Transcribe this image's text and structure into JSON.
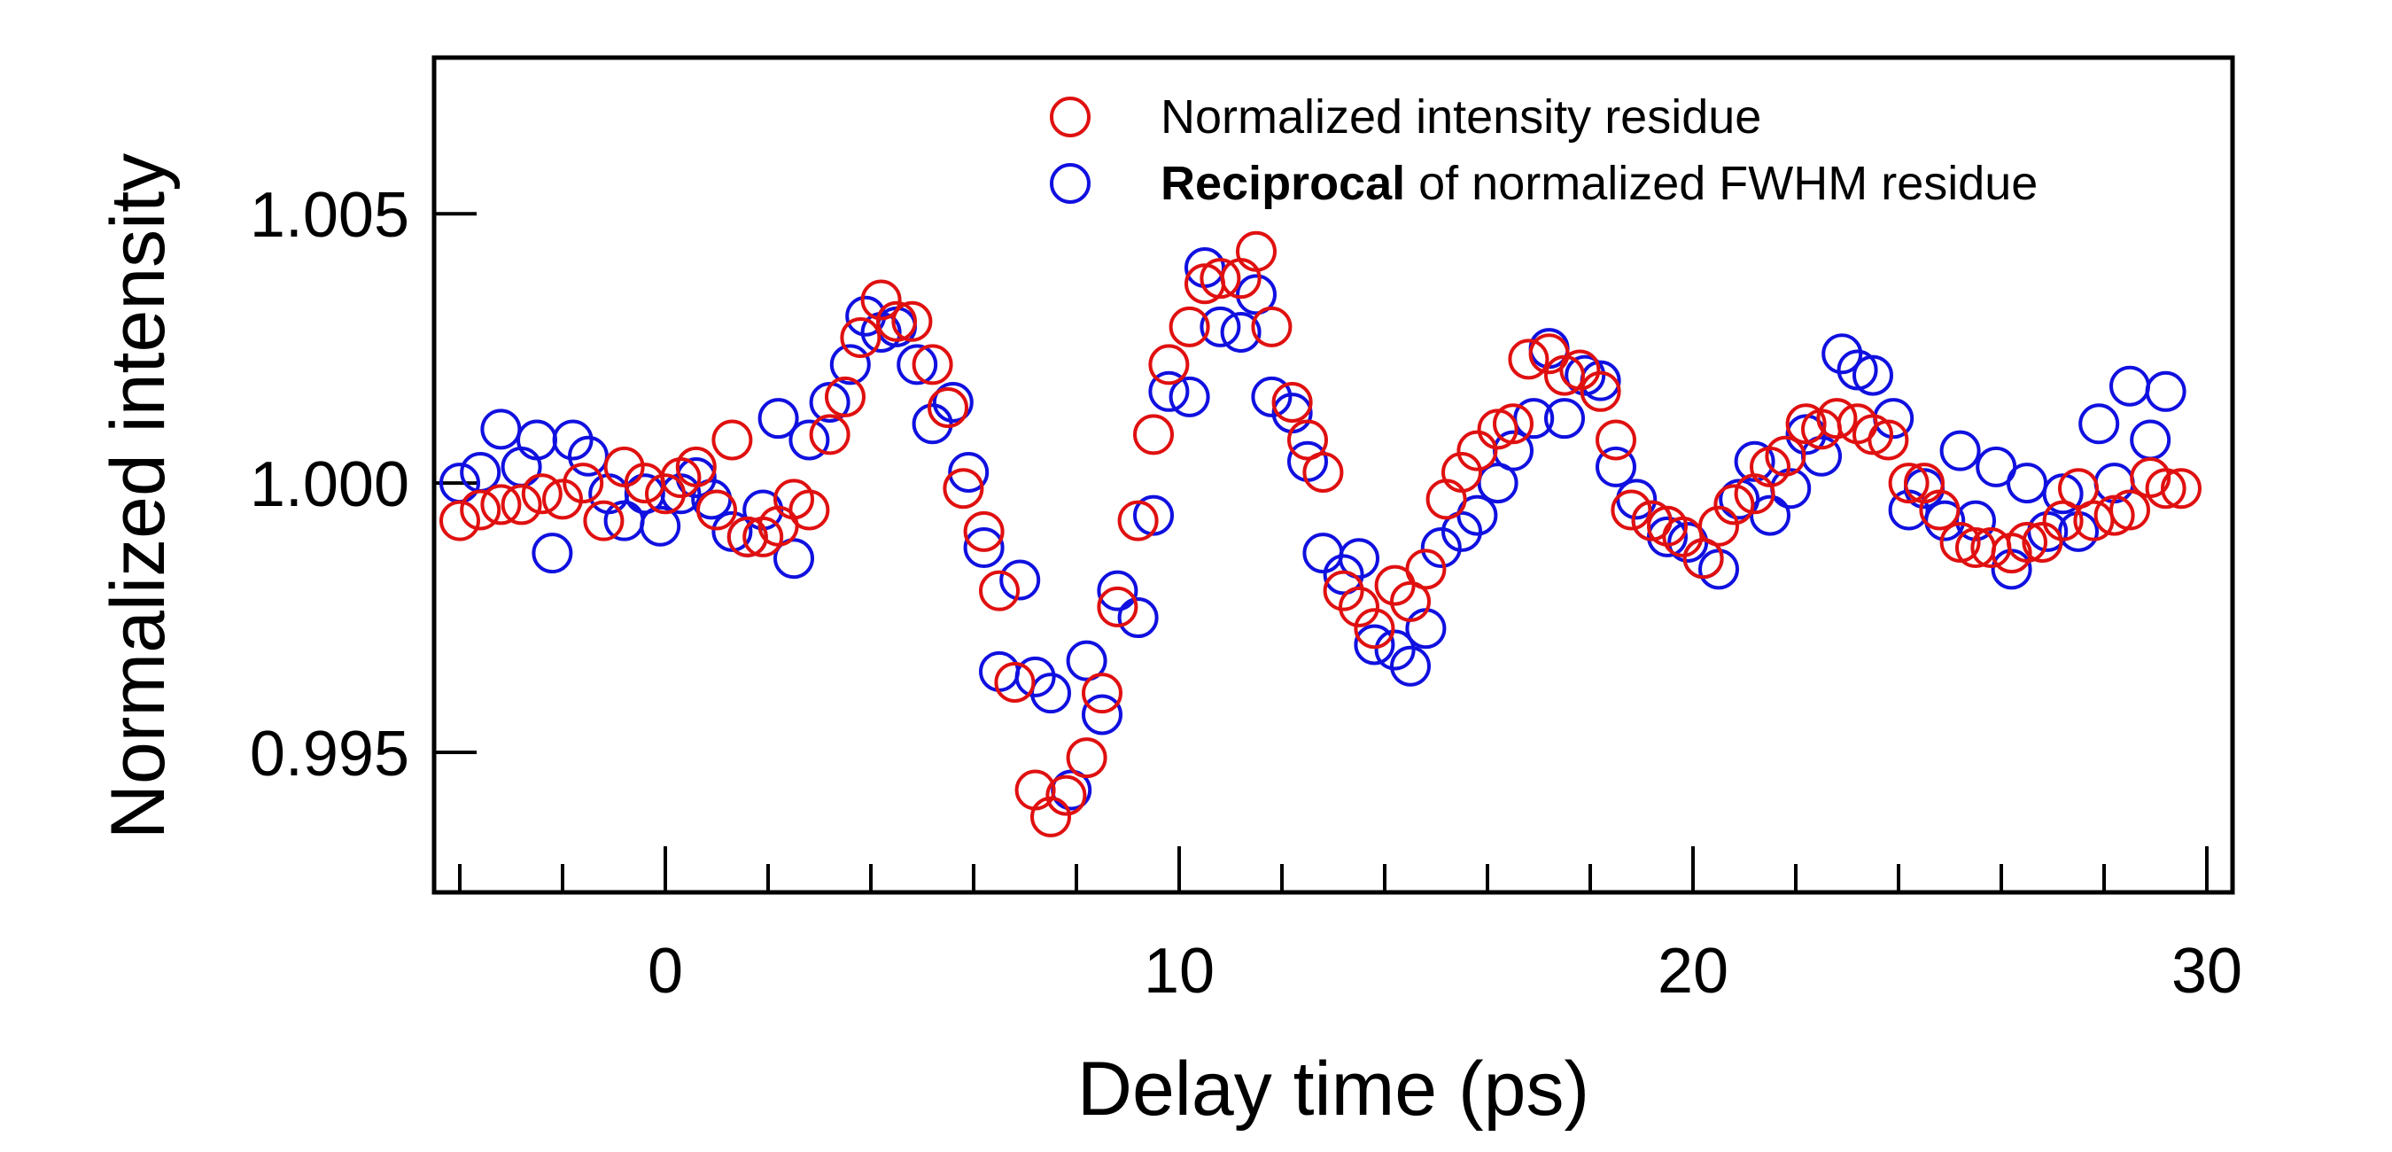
{
  "chart_data": {
    "type": "scatter",
    "title": "",
    "xlabel": "Delay time (ps)",
    "ylabel": "Normalized intensity",
    "xlim": [
      -4.5,
      30.5
    ],
    "ylim": [
      0.9924,
      1.0079
    ],
    "x_ticks": [
      0,
      10,
      20,
      30
    ],
    "x_tick_labels": [
      "0",
      "10",
      "20",
      "30"
    ],
    "x_minor_step": 2,
    "y_ticks": [
      0.995,
      1.0,
      1.005
    ],
    "y_tick_labels": [
      "0.995",
      "1.000",
      "1.005"
    ],
    "grid": false,
    "legend_position": "top-right",
    "series": [
      {
        "name": "Reciprocal of normalized FWHM residue",
        "legend_bold_part": "Reciprocal",
        "legend_rest": " of normalized FWHM residue",
        "color": "#1010e0",
        "marker": "open-circle",
        "points": [
          [
            -4.0,
            1.0
          ],
          [
            -3.6,
            1.0002
          ],
          [
            -3.2,
            1.001
          ],
          [
            -2.8,
            1.0003
          ],
          [
            -2.5,
            1.0008
          ],
          [
            -2.2,
            0.9987
          ],
          [
            -1.8,
            1.0008
          ],
          [
            -1.5,
            1.0005
          ],
          [
            -1.1,
            0.9998
          ],
          [
            -0.8,
            0.9993
          ],
          [
            -0.4,
            0.9998
          ],
          [
            -0.1,
            0.9992
          ],
          [
            0.3,
            0.9998
          ],
          [
            0.6,
            1.0001
          ],
          [
            0.9,
            0.9997
          ],
          [
            1.3,
            0.9991
          ],
          [
            1.6,
            0.999
          ],
          [
            1.9,
            0.9995
          ],
          [
            2.2,
            1.0012
          ],
          [
            2.5,
            0.9986
          ],
          [
            2.8,
            1.0008
          ],
          [
            3.2,
            1.0015
          ],
          [
            3.6,
            1.0022
          ],
          [
            3.9,
            1.0031
          ],
          [
            4.2,
            1.0028
          ],
          [
            4.5,
            1.0029
          ],
          [
            4.9,
            1.0022
          ],
          [
            5.2,
            1.0011
          ],
          [
            5.6,
            1.0015
          ],
          [
            5.9,
            1.0002
          ],
          [
            6.2,
            0.9988
          ],
          [
            6.5,
            0.9965
          ],
          [
            6.9,
            0.9982
          ],
          [
            7.2,
            0.9964
          ],
          [
            7.5,
            0.9961
          ],
          [
            7.9,
            0.9943
          ],
          [
            8.2,
            0.9967
          ],
          [
            8.5,
            0.9957
          ],
          [
            8.8,
            0.998
          ],
          [
            9.2,
            0.9975
          ],
          [
            9.5,
            0.9994
          ],
          [
            9.8,
            1.0017
          ],
          [
            10.2,
            1.0016
          ],
          [
            10.5,
            1.004
          ],
          [
            10.8,
            1.0029
          ],
          [
            11.2,
            1.0028
          ],
          [
            11.5,
            1.0035
          ],
          [
            11.8,
            1.0016
          ],
          [
            12.2,
            1.0013
          ],
          [
            12.5,
            1.0004
          ],
          [
            12.8,
            0.9987
          ],
          [
            13.2,
            0.9983
          ],
          [
            13.5,
            0.9986
          ],
          [
            13.8,
            0.997
          ],
          [
            14.2,
            0.9969
          ],
          [
            14.5,
            0.9966
          ],
          [
            14.8,
            0.9973
          ],
          [
            15.1,
            0.9988
          ],
          [
            15.5,
            0.9991
          ],
          [
            15.8,
            0.9994
          ],
          [
            16.2,
            1.0
          ],
          [
            16.5,
            1.0006
          ],
          [
            16.9,
            1.0012
          ],
          [
            17.2,
            1.0025
          ],
          [
            17.5,
            1.0012
          ],
          [
            17.9,
            1.002
          ],
          [
            18.2,
            1.0019
          ],
          [
            18.5,
            1.0003
          ],
          [
            18.9,
            0.9997
          ],
          [
            19.2,
            0.9993
          ],
          [
            19.5,
            0.999
          ],
          [
            19.9,
            0.9989
          ],
          [
            20.2,
            0.9986
          ],
          [
            20.5,
            0.9984
          ],
          [
            20.9,
            0.9997
          ],
          [
            21.2,
            1.0004
          ],
          [
            21.5,
            0.9994
          ],
          [
            21.9,
            0.9999
          ],
          [
            22.2,
            1.0009
          ],
          [
            22.5,
            1.0005
          ],
          [
            22.9,
            1.0024
          ],
          [
            23.2,
            1.0021
          ],
          [
            23.5,
            1.002
          ],
          [
            23.9,
            1.0012
          ],
          [
            24.2,
            0.9995
          ],
          [
            24.5,
            0.9999
          ],
          [
            24.9,
            0.9993
          ],
          [
            25.2,
            1.0006
          ],
          [
            25.5,
            0.9993
          ],
          [
            25.9,
            1.0003
          ],
          [
            26.2,
            0.9984
          ],
          [
            26.5,
            1.0
          ],
          [
            26.9,
            0.9991
          ],
          [
            27.2,
            0.9998
          ],
          [
            27.5,
            0.9991
          ],
          [
            27.9,
            1.0011
          ],
          [
            28.2,
            1.0
          ],
          [
            28.5,
            1.0018
          ],
          [
            28.9,
            1.0008
          ],
          [
            29.2,
            1.0017
          ]
        ]
      },
      {
        "name": "Normalized intensity residue",
        "color": "#e01010",
        "marker": "open-circle",
        "points": [
          [
            -4.0,
            0.9993
          ],
          [
            -3.6,
            0.9995
          ],
          [
            -3.2,
            0.9996
          ],
          [
            -2.8,
            0.9996
          ],
          [
            -2.4,
            0.9998
          ],
          [
            -2.0,
            0.9997
          ],
          [
            -1.6,
            1.0
          ],
          [
            -1.2,
            0.9993
          ],
          [
            -0.8,
            1.0003
          ],
          [
            -0.4,
            1.0
          ],
          [
            0.0,
            0.9998
          ],
          [
            0.3,
            1.0001
          ],
          [
            0.6,
            1.0003
          ],
          [
            1.0,
            0.9995
          ],
          [
            1.3,
            1.0008
          ],
          [
            1.6,
            0.999
          ],
          [
            1.9,
            0.999
          ],
          [
            2.2,
            0.9992
          ],
          [
            2.5,
            0.9997
          ],
          [
            2.8,
            0.9995
          ],
          [
            3.2,
            1.0009
          ],
          [
            3.5,
            1.0016
          ],
          [
            3.8,
            1.0027
          ],
          [
            4.2,
            1.0034
          ],
          [
            4.5,
            1.003
          ],
          [
            4.8,
            1.003
          ],
          [
            5.2,
            1.0022
          ],
          [
            5.5,
            1.0014
          ],
          [
            5.8,
            0.9999
          ],
          [
            6.2,
            0.9991
          ],
          [
            6.5,
            0.998
          ],
          [
            6.8,
            0.9963
          ],
          [
            7.2,
            0.9943
          ],
          [
            7.5,
            0.9938
          ],
          [
            7.8,
            0.9942
          ],
          [
            8.2,
            0.9949
          ],
          [
            8.5,
            0.9961
          ],
          [
            8.8,
            0.9977
          ],
          [
            9.2,
            0.9993
          ],
          [
            9.5,
            1.0009
          ],
          [
            9.8,
            1.0022
          ],
          [
            10.2,
            1.0029
          ],
          [
            10.5,
            1.0037
          ],
          [
            10.8,
            1.0038
          ],
          [
            11.2,
            1.0038
          ],
          [
            11.5,
            1.0043
          ],
          [
            11.8,
            1.0029
          ],
          [
            12.2,
            1.0015
          ],
          [
            12.5,
            1.0008
          ],
          [
            12.8,
            1.0002
          ],
          [
            13.2,
            0.998
          ],
          [
            13.5,
            0.9977
          ],
          [
            13.8,
            0.9973
          ],
          [
            14.2,
            0.9981
          ],
          [
            14.5,
            0.9978
          ],
          [
            14.8,
            0.9984
          ],
          [
            15.2,
            0.9997
          ],
          [
            15.5,
            1.0002
          ],
          [
            15.8,
            1.0006
          ],
          [
            16.2,
            1.001
          ],
          [
            16.5,
            1.0011
          ],
          [
            16.8,
            1.0023
          ],
          [
            17.2,
            1.0024
          ],
          [
            17.5,
            1.002
          ],
          [
            17.8,
            1.0021
          ],
          [
            18.2,
            1.0017
          ],
          [
            18.5,
            1.0008
          ],
          [
            18.8,
            0.9995
          ],
          [
            19.2,
            0.9993
          ],
          [
            19.5,
            0.9992
          ],
          [
            19.8,
            0.999
          ],
          [
            20.2,
            0.9986
          ],
          [
            20.5,
            0.9992
          ],
          [
            20.8,
            0.9996
          ],
          [
            21.2,
            0.9998
          ],
          [
            21.5,
            1.0003
          ],
          [
            21.8,
            1.0005
          ],
          [
            22.2,
            1.0011
          ],
          [
            22.5,
            1.001
          ],
          [
            22.8,
            1.0012
          ],
          [
            23.2,
            1.0011
          ],
          [
            23.5,
            1.0009
          ],
          [
            23.8,
            1.0008
          ],
          [
            24.2,
            1.0
          ],
          [
            24.5,
            1.0
          ],
          [
            24.8,
            0.9995
          ],
          [
            25.2,
            0.9989
          ],
          [
            25.5,
            0.9988
          ],
          [
            25.8,
            0.9988
          ],
          [
            26.2,
            0.9987
          ],
          [
            26.5,
            0.9989
          ],
          [
            26.8,
            0.9989
          ],
          [
            27.2,
            0.9993
          ],
          [
            27.5,
            0.9999
          ],
          [
            27.8,
            0.9993
          ],
          [
            28.2,
            0.9994
          ],
          [
            28.5,
            0.9995
          ],
          [
            28.9,
            1.0001
          ],
          [
            29.2,
            0.9999
          ],
          [
            29.5,
            0.9999
          ]
        ]
      }
    ],
    "legend": [
      {
        "series_index": 1,
        "text": "Normalized intensity residue"
      },
      {
        "series_index": 0,
        "bold": "Reciprocal",
        "text": " of normalized FWHM residue"
      }
    ]
  }
}
